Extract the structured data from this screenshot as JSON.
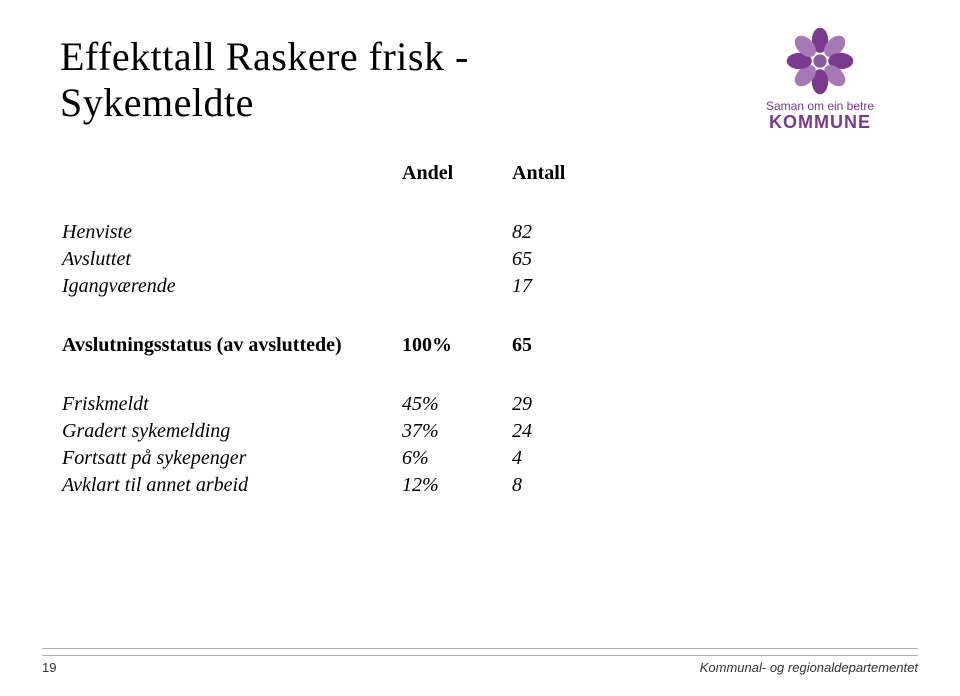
{
  "title_line1": "Effekttall Raskere frisk -",
  "title_line2": "Sykemeldte",
  "logo": {
    "tagline": "Saman om ein betre",
    "brand": "KOMMUNE",
    "petal_color": "#7a3a8e",
    "petal_color_light": "#a678b6",
    "center_color": "#8d5aa0"
  },
  "table": {
    "header": {
      "col2": "Andel",
      "col3": "Antall"
    },
    "top_rows": [
      {
        "label": "Henviste",
        "pct": "",
        "num": "82"
      },
      {
        "label": "Avsluttet",
        "pct": "",
        "num": "65"
      },
      {
        "label": "Igangværende",
        "pct": "",
        "num": "17"
      }
    ],
    "section": {
      "label": "Avslutningsstatus (av avsluttede)",
      "pct": "100%",
      "num": "65"
    },
    "detail_rows": [
      {
        "label": "Friskmeldt",
        "pct": "45%",
        "num": "29"
      },
      {
        "label": "Gradert sykemelding",
        "pct": "37%",
        "num": "24"
      },
      {
        "label": "Fortsatt på sykepenger",
        "pct": "6%",
        "num": "4"
      },
      {
        "label": "Avklart til annet arbeid",
        "pct": "12%",
        "num": "8"
      }
    ]
  },
  "footer": {
    "page": "19",
    "dept": "Kommunal- og regionaldepartementet"
  },
  "styles": {
    "title_fontsize_pt": 30,
    "body_fontsize_pt": 15,
    "footer_fontsize_pt": 10,
    "text_color": "#000000",
    "background_color": "#ffffff",
    "footer_line_color": "#b0b0b0"
  }
}
